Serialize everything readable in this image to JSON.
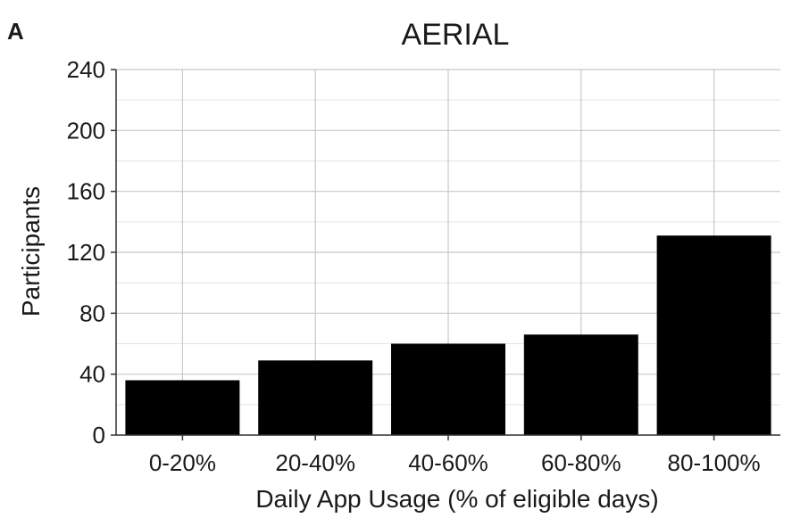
{
  "panel_label": "A",
  "colors": {
    "bar": "#000000",
    "grid_major": "#c8c8c8",
    "grid_minor": "#e4e4e4",
    "axis": "#333333"
  },
  "chart_data": {
    "type": "bar",
    "title": "AERIAL",
    "xlabel": "Daily App Usage (% of eligible days)",
    "ylabel": "Participants",
    "categories": [
      "0-20%",
      "20-40%",
      "40-60%",
      "60-80%",
      "80-100%"
    ],
    "values": [
      36,
      49,
      60,
      66,
      131
    ],
    "ylim": [
      0,
      240
    ],
    "yticks": [
      0,
      40,
      80,
      120,
      160,
      200,
      240
    ],
    "grid": true,
    "legend": "none"
  }
}
